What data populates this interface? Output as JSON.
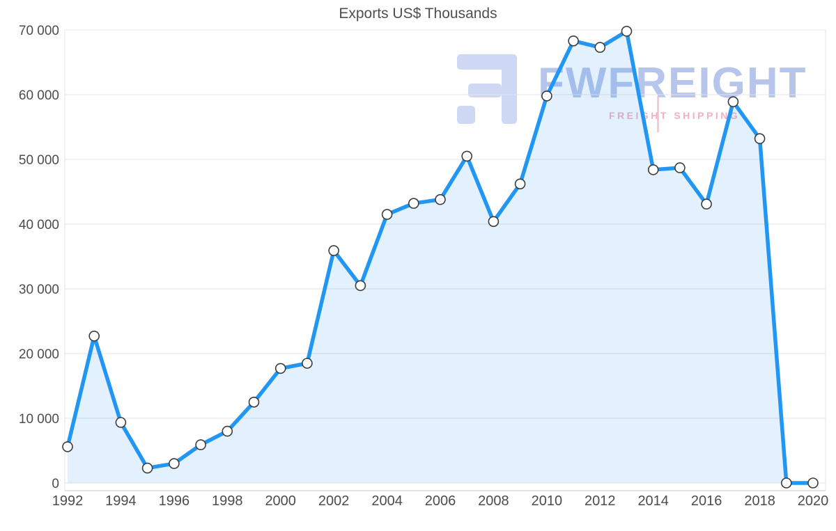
{
  "watermark": {
    "brand": "FWFREIGHT",
    "subtitle": "FREIGHT SHIPPING",
    "brand_color": "#7d97de",
    "subtitle_color": "#ef9db4",
    "logo_color": "#9fb2ec"
  },
  "colors": {
    "line": "#2196f3",
    "area": "rgba(33,150,243,0.13)",
    "marker_fill": "#ffffff",
    "marker_stroke": "#3c3c3c",
    "grid": "#e3e3e3",
    "axis": "#c9c9c9",
    "label": "#4c4c4c"
  },
  "chart_data": {
    "type": "area",
    "title": "Exports US$ Thousands",
    "series_name": "Exports US$ Thousands",
    "x": [
      1992,
      1993,
      1994,
      1995,
      1996,
      1997,
      1998,
      1999,
      2000,
      2001,
      2002,
      2003,
      2004,
      2005,
      2006,
      2007,
      2008,
      2009,
      2010,
      2011,
      2012,
      2013,
      2014,
      2015,
      2016,
      2017,
      2018,
      2019,
      2020
    ],
    "values": [
      5600,
      22700,
      9350,
      2300,
      3000,
      5900,
      8000,
      12500,
      17700,
      18500,
      35900,
      30500,
      41500,
      43200,
      43800,
      50500,
      40400,
      46200,
      59800,
      68300,
      67300,
      69800,
      48400,
      48700,
      43100,
      58900,
      53200,
      0,
      0
    ],
    "xlabel": "",
    "ylabel": "",
    "ylim": [
      0,
      70000
    ],
    "yticks": [
      0,
      10000,
      20000,
      30000,
      40000,
      50000,
      60000,
      70000
    ],
    "ytick_labels": [
      "0",
      "10 000",
      "20 000",
      "30 000",
      "40 000",
      "50 000",
      "60 000",
      "70 000"
    ],
    "xticks": [
      1992,
      1994,
      1996,
      1998,
      2000,
      2002,
      2004,
      2006,
      2008,
      2010,
      2012,
      2014,
      2016,
      2018,
      2020
    ],
    "grid": "horizontal",
    "legend": "none",
    "marker": "circle"
  }
}
